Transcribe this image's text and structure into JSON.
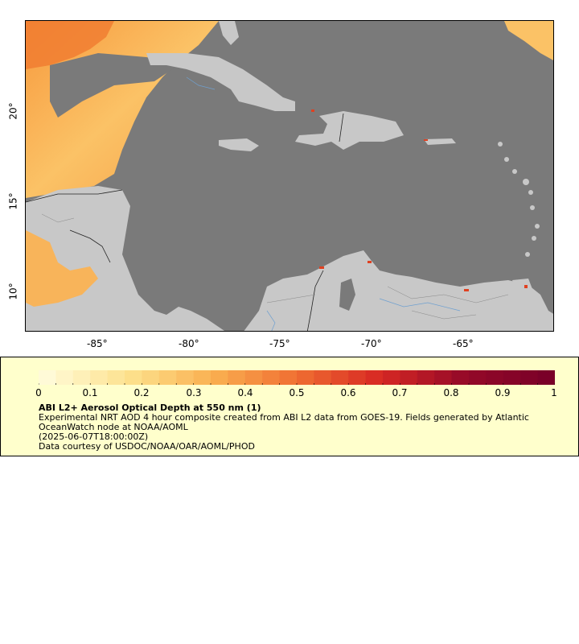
{
  "map": {
    "lon_ticks": [
      "-85°",
      "-80°",
      "-75°",
      "-70°",
      "-65°"
    ],
    "lat_ticks": [
      "20°",
      "15°",
      "10°"
    ],
    "ocean_color": "#7a7a7a",
    "land_color": "#c8c8c8",
    "region": "Caribbean Sea and Central America"
  },
  "colorbar": {
    "ticks": [
      "0",
      "0.1",
      "0.2",
      "0.3",
      "0.4",
      "0.5",
      "0.6",
      "0.7",
      "0.8",
      "0.9",
      "1"
    ],
    "color_low": "#fff5c8",
    "color_mid": "#f8a050",
    "color_high": "#7a0028"
  },
  "legend": {
    "title": "ABI L2+ Aerosol Optical Depth at 550 nm (1)",
    "description": "Experimental NRT AOD 4 hour composite created from ABI L2 data from GOES-19. Fields generated by Atlantic OceanWatch node at NOAA/AOML",
    "time": "(2025-06-07T18:00:00Z)",
    "credit": "Data courtesy of USDOC/NOAA/OAR/AOML/PHOD",
    "background": "#ffffcc"
  }
}
